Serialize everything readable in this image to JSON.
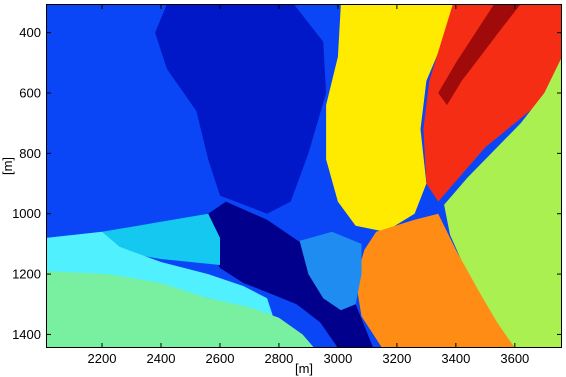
{
  "chart_data": {
    "type": "heatmap",
    "title": "",
    "xlabel": "[m]",
    "ylabel": "[m]",
    "xlim": [
      2010,
      3760
    ],
    "ylim": [
      1445,
      305
    ],
    "y_reversed": true,
    "x_ticks": [
      2200,
      2400,
      2600,
      2800,
      3000,
      3200,
      3400,
      3600
    ],
    "x_tick_labels": [
      "2200",
      "2400",
      "2600",
      "2800",
      "3000",
      "3200",
      "3400",
      "3600"
    ],
    "y_ticks": [
      400,
      600,
      800,
      1000,
      1200,
      1400
    ],
    "y_tick_labels": [
      "400",
      "600",
      "800",
      "1000",
      "1200",
      "1400"
    ],
    "colormap": "jet",
    "colors": {
      "background": "#0a46f5",
      "dark_navy": "#00008c",
      "navy": "#0018c8",
      "sky": "#1e8cf0",
      "cyan": "#14c8f0",
      "light_cyan": "#50f0ff",
      "green": "#78f0a0",
      "yellow": "#ffeb00",
      "orange": "#ff8c14",
      "red": "#f52d14",
      "dark_red": "#a00a0a",
      "lime": "#aaf050"
    },
    "regions": [
      {
        "label": "blue_left",
        "color": "#0a46f5",
        "points": [
          [
            2010,
            305
          ],
          [
            2450,
            305
          ],
          [
            2650,
            500
          ],
          [
            2800,
            620
          ],
          [
            2840,
            900
          ],
          [
            2800,
            1060
          ],
          [
            2550,
            1000
          ],
          [
            2380,
            1040
          ],
          [
            2200,
            1070
          ],
          [
            2010,
            1100
          ]
        ]
      },
      {
        "label": "navy_center",
        "color": "#0018c8",
        "points": [
          [
            2420,
            305
          ],
          [
            2850,
            305
          ],
          [
            2950,
            430
          ],
          [
            2960,
            600
          ],
          [
            2900,
            800
          ],
          [
            2840,
            960
          ],
          [
            2760,
            1000
          ],
          [
            2600,
            940
          ],
          [
            2560,
            820
          ],
          [
            2520,
            660
          ],
          [
            2420,
            520
          ],
          [
            2380,
            400
          ]
        ]
      },
      {
        "label": "dark_navy_strip",
        "color": "#00008c",
        "points": [
          [
            2560,
            1000
          ],
          [
            2620,
            960
          ],
          [
            2760,
            1020
          ],
          [
            2880,
            1100
          ],
          [
            2990,
            1190
          ],
          [
            3060,
            1300
          ],
          [
            3120,
            1445
          ],
          [
            3000,
            1445
          ],
          [
            2940,
            1360
          ],
          [
            2860,
            1300
          ],
          [
            2760,
            1260
          ],
          [
            2680,
            1230
          ],
          [
            2600,
            1180
          ],
          [
            2560,
            1100
          ]
        ]
      },
      {
        "label": "yellow_main",
        "color": "#ffeb00",
        "points": [
          [
            3010,
            305
          ],
          [
            3250,
            305
          ],
          [
            3400,
            305
          ],
          [
            3360,
            420
          ],
          [
            3300,
            560
          ],
          [
            3280,
            720
          ],
          [
            3300,
            900
          ],
          [
            3260,
            1000
          ],
          [
            3160,
            1060
          ],
          [
            3060,
            1040
          ],
          [
            3000,
            960
          ],
          [
            2960,
            820
          ],
          [
            2960,
            640
          ],
          [
            3000,
            480
          ]
        ]
      },
      {
        "label": "red_upper_right",
        "color": "#f52d14",
        "points": [
          [
            3390,
            305
          ],
          [
            3760,
            305
          ],
          [
            3760,
            520
          ],
          [
            3700,
            620
          ],
          [
            3600,
            700
          ],
          [
            3500,
            780
          ],
          [
            3420,
            870
          ],
          [
            3340,
            960
          ],
          [
            3300,
            900
          ],
          [
            3290,
            720
          ],
          [
            3310,
            560
          ]
        ]
      },
      {
        "label": "dark_red_band",
        "color": "#a00a0a",
        "points": [
          [
            3530,
            305
          ],
          [
            3620,
            305
          ],
          [
            3560,
            380
          ],
          [
            3490,
            470
          ],
          [
            3420,
            560
          ],
          [
            3370,
            640
          ],
          [
            3340,
            600
          ],
          [
            3400,
            500
          ],
          [
            3460,
            410
          ]
        ]
      },
      {
        "label": "lime_right",
        "color": "#aaf050",
        "points": [
          [
            3760,
            480
          ],
          [
            3760,
            1445
          ],
          [
            3600,
            1445
          ],
          [
            3520,
            1340
          ],
          [
            3440,
            1200
          ],
          [
            3380,
            1070
          ],
          [
            3360,
            970
          ],
          [
            3440,
            880
          ],
          [
            3520,
            800
          ],
          [
            3620,
            700
          ],
          [
            3700,
            600
          ]
        ]
      },
      {
        "label": "orange_bottom",
        "color": "#ff8c14",
        "points": [
          [
            3130,
            1060
          ],
          [
            3260,
            1020
          ],
          [
            3340,
            1000
          ],
          [
            3400,
            1120
          ],
          [
            3480,
            1260
          ],
          [
            3540,
            1360
          ],
          [
            3600,
            1445
          ],
          [
            3150,
            1445
          ],
          [
            3080,
            1340
          ],
          [
            3060,
            1220
          ],
          [
            3090,
            1120
          ]
        ]
      },
      {
        "label": "sky_blob",
        "color": "#1e8cf0",
        "points": [
          [
            2870,
            1090
          ],
          [
            2980,
            1060
          ],
          [
            3080,
            1100
          ],
          [
            3080,
            1200
          ],
          [
            3060,
            1300
          ],
          [
            3010,
            1320
          ],
          [
            2950,
            1280
          ],
          [
            2900,
            1200
          ]
        ]
      },
      {
        "label": "cyan_band",
        "color": "#14c8f0",
        "points": [
          [
            2200,
            1060
          ],
          [
            2380,
            1030
          ],
          [
            2560,
            1000
          ],
          [
            2600,
            1080
          ],
          [
            2600,
            1170
          ],
          [
            2500,
            1160
          ],
          [
            2400,
            1150
          ],
          [
            2280,
            1130
          ],
          [
            2200,
            1110
          ]
        ]
      },
      {
        "label": "light_cyan_band",
        "color": "#50f0ff",
        "points": [
          [
            2010,
            1080
          ],
          [
            2200,
            1060
          ],
          [
            2260,
            1110
          ],
          [
            2400,
            1160
          ],
          [
            2560,
            1200
          ],
          [
            2680,
            1240
          ],
          [
            2760,
            1280
          ],
          [
            2780,
            1340
          ],
          [
            2700,
            1320
          ],
          [
            2560,
            1280
          ],
          [
            2400,
            1240
          ],
          [
            2220,
            1210
          ],
          [
            2010,
            1200
          ]
        ]
      },
      {
        "label": "green_bottom_left",
        "color": "#78f0a0",
        "points": [
          [
            2010,
            1190
          ],
          [
            2220,
            1200
          ],
          [
            2400,
            1230
          ],
          [
            2560,
            1280
          ],
          [
            2700,
            1310
          ],
          [
            2800,
            1345
          ],
          [
            2880,
            1400
          ],
          [
            2920,
            1445
          ],
          [
            2010,
            1445
          ]
        ]
      }
    ]
  }
}
